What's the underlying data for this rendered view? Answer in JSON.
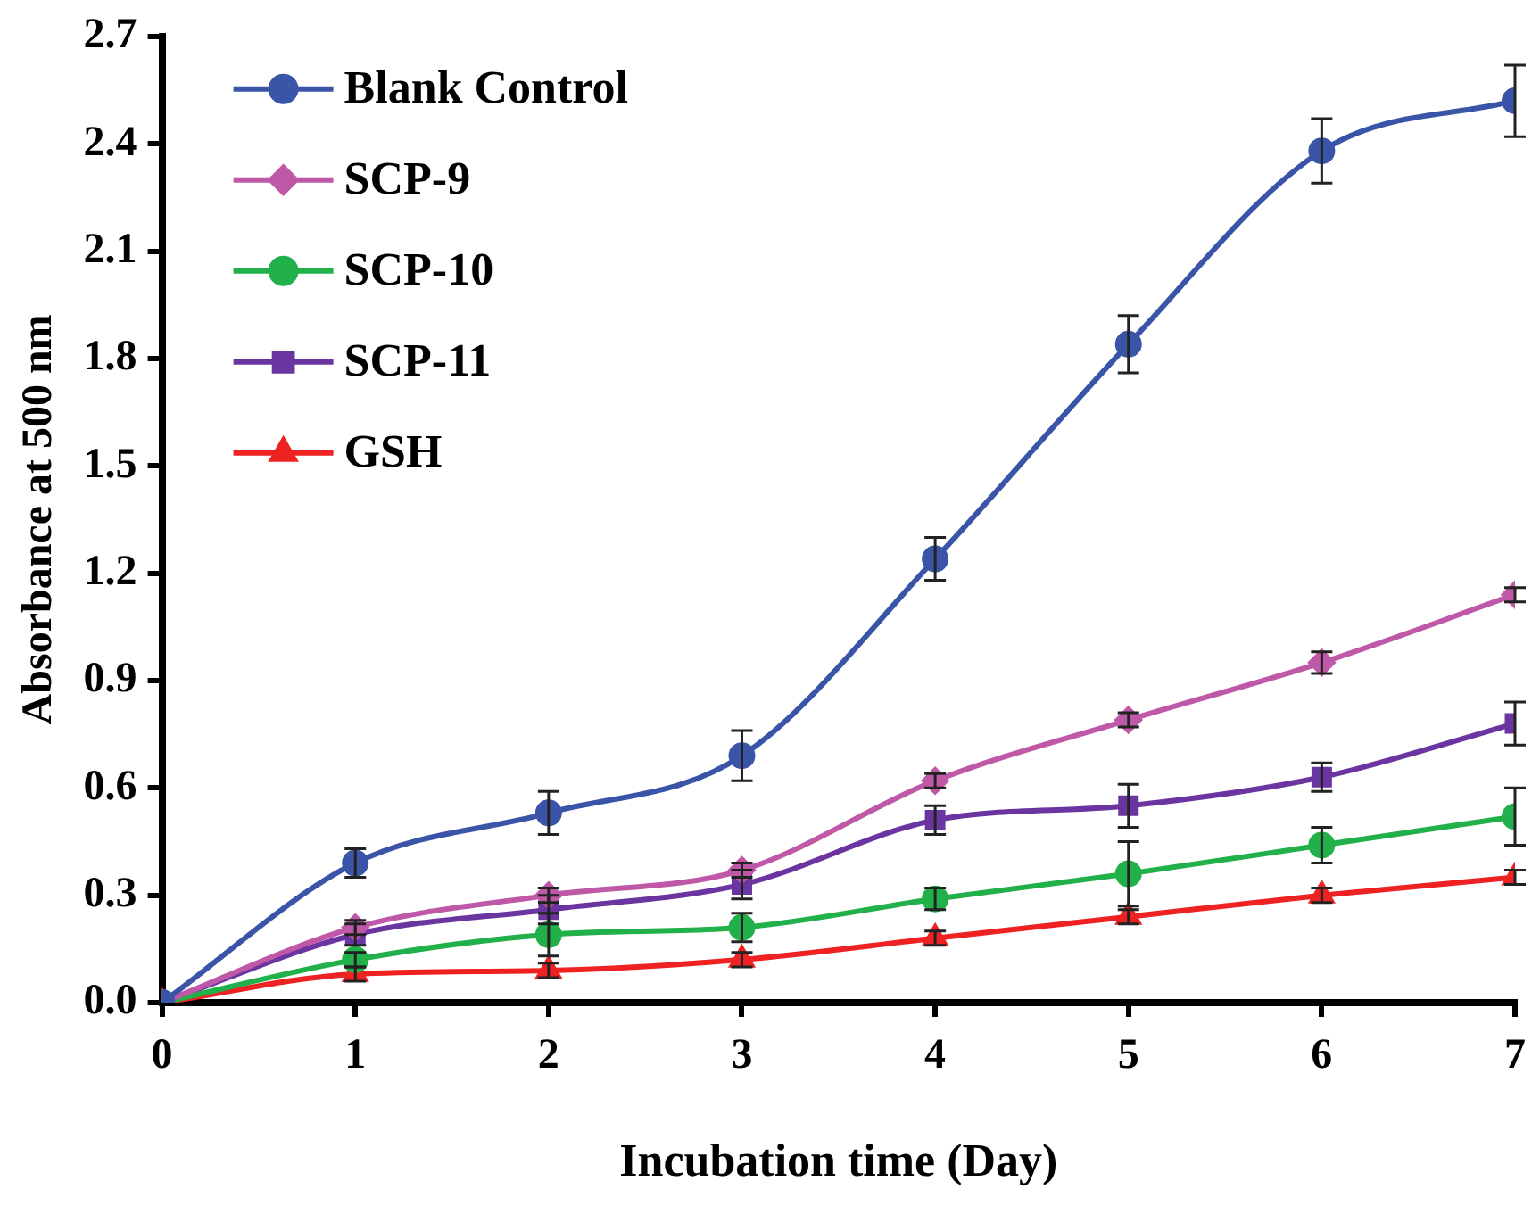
{
  "chart_data": {
    "type": "line",
    "xlabel": "Incubation time (Day)",
    "ylabel": "Absorbance at 500 nm",
    "x": [
      0,
      1,
      2,
      3,
      4,
      5,
      6,
      7
    ],
    "xlim": [
      0,
      7
    ],
    "xticks": [
      0,
      1,
      2,
      3,
      4,
      5,
      6,
      7
    ],
    "ylim": [
      0,
      2.7
    ],
    "yticks": [
      {
        "value": 0,
        "label": "0.0"
      },
      0.3,
      0.6,
      0.9,
      1.2,
      1.5,
      1.8,
      2.1,
      2.4,
      2.7
    ],
    "grid": false,
    "legend": "top left",
    "series": [
      {
        "name": "Blank Control",
        "color": "#3a54a8",
        "marker": "circle",
        "values": [
          0,
          0.39,
          0.53,
          0.69,
          1.24,
          1.84,
          2.38,
          2.52
        ],
        "errors": [
          null,
          0.04,
          0.06,
          0.07,
          0.06,
          0.08,
          0.09,
          0.1
        ]
      },
      {
        "name": "SCP-9",
        "color": "#c058a8",
        "marker": "diamond",
        "values": [
          0,
          0.21,
          0.3,
          0.37,
          0.62,
          0.79,
          0.95,
          1.14
        ],
        "errors": [
          null,
          0.02,
          0.02,
          0.02,
          0.02,
          0.02,
          0.03,
          0.02
        ]
      },
      {
        "name": "SCP-10",
        "color": "#22b04a",
        "marker": "circle",
        "values": [
          0,
          0.12,
          0.19,
          0.21,
          0.29,
          0.36,
          0.44,
          0.52
        ],
        "errors": [
          null,
          0.02,
          0.06,
          0.04,
          0.03,
          0.09,
          0.05,
          0.08
        ]
      },
      {
        "name": "SCP-11",
        "color": "#6a35a0",
        "marker": "square",
        "values": [
          0,
          0.19,
          0.26,
          0.33,
          0.51,
          0.55,
          0.63,
          0.78
        ],
        "errors": [
          null,
          0.03,
          0.04,
          0.04,
          0.04,
          0.06,
          0.04,
          0.06
        ]
      },
      {
        "name": "GSH",
        "color": "#ee2222",
        "marker": "triangle",
        "values": [
          0,
          0.08,
          0.09,
          0.12,
          0.18,
          0.24,
          0.3,
          0.35
        ],
        "errors": [
          null,
          0.02,
          0.02,
          0.02,
          0.02,
          0.02,
          0.02,
          0.02
        ]
      }
    ]
  }
}
